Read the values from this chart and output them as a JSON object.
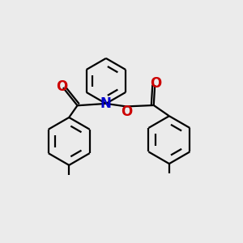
{
  "background_color": "#ebebeb",
  "bond_color": "#000000",
  "N_color": "#0000cc",
  "O_color": "#cc0000",
  "lw": 1.6,
  "figsize": [
    3.0,
    3.0
  ],
  "dpi": 100,
  "xlim": [
    0,
    10
  ],
  "ylim": [
    0,
    10
  ]
}
